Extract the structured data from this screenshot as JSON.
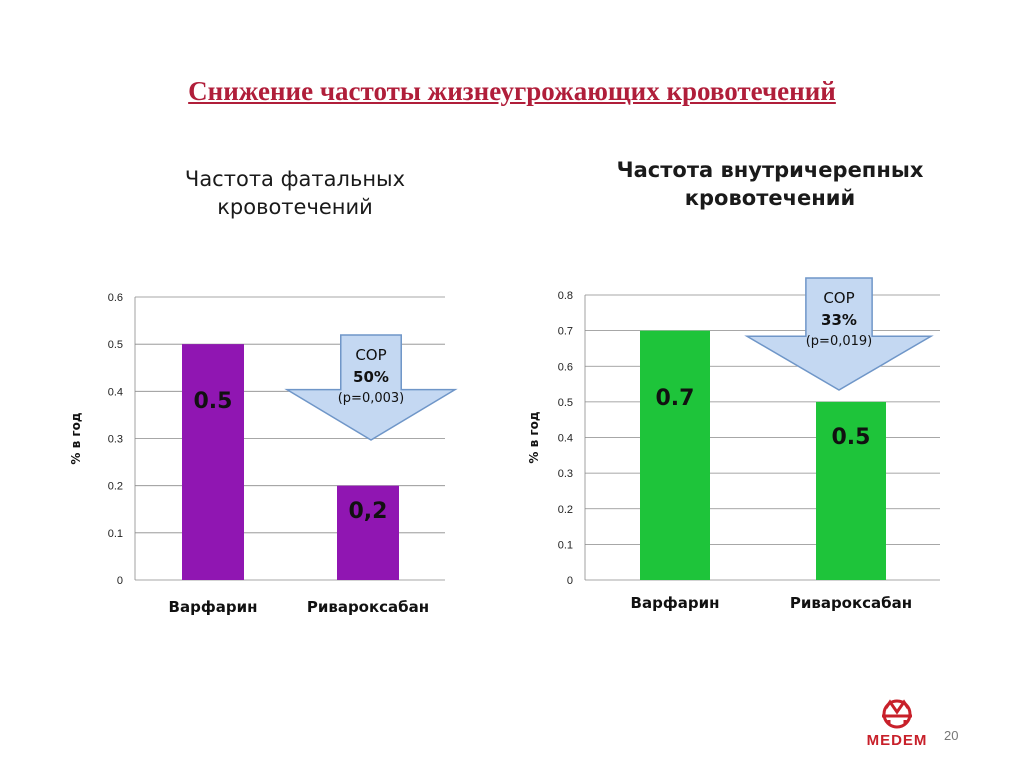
{
  "slide": {
    "title": "Снижение частоты жизнеугрожающих кровотечений",
    "page_number": "20",
    "logo_text": "MEDEM"
  },
  "chart_data": [
    {
      "type": "bar",
      "title": "Частота фатальных кровотечений",
      "ylabel": "% в год",
      "categories": [
        "Варфарин",
        "Ривароксабан"
      ],
      "values": [
        0.5,
        0.2
      ],
      "data_labels": [
        "0.5",
        "0,2"
      ],
      "ylim": [
        0,
        0.6
      ],
      "ticks": [
        "0",
        "0.1",
        "0.2",
        "0.3",
        "0.4",
        "0.5",
        "0.6"
      ],
      "tick_values": [
        0,
        0.1,
        0.2,
        0.3,
        0.4,
        0.5,
        0.6
      ],
      "bar_color": "#9016b2",
      "grid": true,
      "callout": {
        "line1": "СОР",
        "line2": "50%",
        "line3": "(p=0,003)"
      }
    },
    {
      "type": "bar",
      "title": "Частота внутричерепных кровотечений",
      "ylabel": "% в год",
      "categories": [
        "Варфарин",
        "Ривароксабан"
      ],
      "values": [
        0.7,
        0.5
      ],
      "data_labels": [
        "0.7",
        "0.5"
      ],
      "ylim": [
        0,
        0.8
      ],
      "ticks": [
        "0",
        "0.1",
        "0.2",
        "0.3",
        "0.4",
        "0.5",
        "0.6",
        "0.7",
        "0.8"
      ],
      "tick_values": [
        0,
        0.1,
        0.2,
        0.3,
        0.4,
        0.5,
        0.6,
        0.7,
        0.8
      ],
      "bar_color": "#1ec43a",
      "grid": true,
      "callout": {
        "line1": "СОР",
        "line2": "33%",
        "line3": "(p=0,019)"
      }
    }
  ],
  "colors": {
    "title": "#b01e3a",
    "arrow_fill": "#c4d8f2",
    "arrow_stroke": "#6f96c8",
    "logo_red": "#c8202a"
  }
}
